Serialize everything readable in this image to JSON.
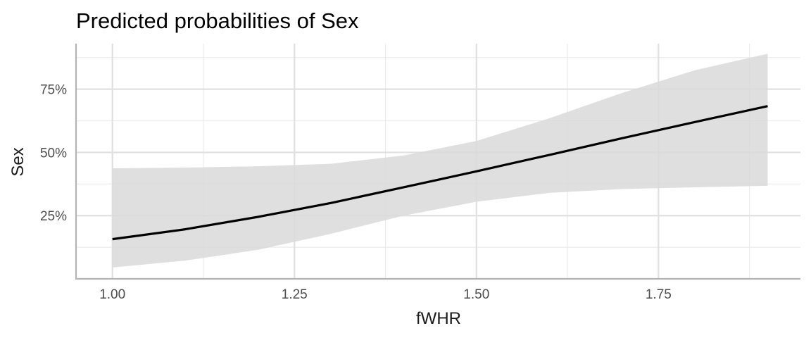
{
  "chart_data": {
    "type": "line",
    "title": "Predicted probabilities of Sex",
    "xlabel": "fWHR",
    "ylabel": "Sex",
    "xlim": [
      0.95,
      1.945
    ],
    "ylim": [
      0.0,
      0.93
    ],
    "x_ticks": [
      1.0,
      1.25,
      1.5,
      1.75
    ],
    "x_tick_labels": [
      "1.00",
      "1.25",
      "1.50",
      "1.75"
    ],
    "x_minor_ticks": [
      1.125,
      1.375,
      1.625,
      1.875
    ],
    "y_ticks": [
      0.25,
      0.5,
      0.75
    ],
    "y_tick_labels": [
      "25%",
      "50%",
      "75%"
    ],
    "y_minor_ticks": [
      0.125,
      0.375,
      0.625,
      0.875
    ],
    "grid": true,
    "legend": "none",
    "line_color": "#000000",
    "ribbon_color": "#d9d9d9",
    "series": [
      {
        "x": [
          1.0,
          1.1,
          1.2,
          1.3,
          1.4,
          1.5,
          1.6,
          1.7,
          1.8,
          1.9
        ],
        "y": [
          0.157,
          0.196,
          0.245,
          0.3,
          0.362,
          0.425,
          0.49,
          0.556,
          0.62,
          0.683
        ],
        "lower": [
          0.045,
          0.072,
          0.115,
          0.178,
          0.25,
          0.305,
          0.34,
          0.355,
          0.362,
          0.368
        ],
        "upper": [
          0.437,
          0.44,
          0.445,
          0.455,
          0.488,
          0.545,
          0.635,
          0.735,
          0.825,
          0.89
        ]
      }
    ]
  }
}
